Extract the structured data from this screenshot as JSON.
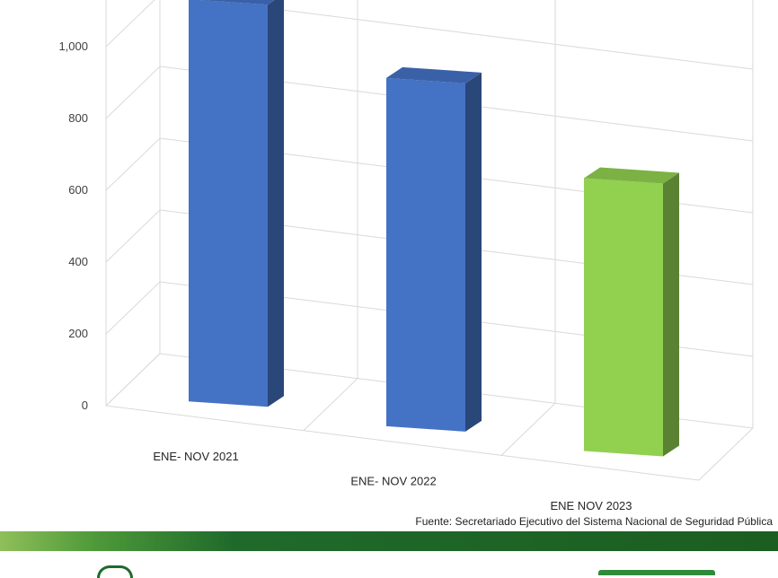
{
  "chart_data": {
    "type": "bar",
    "subtype": "3d-column",
    "categories": [
      "ENE- NOV 2021",
      "ENE- NOV 2022",
      "ENE NOV 2023"
    ],
    "values": [
      1120,
      970,
      760
    ],
    "colors": [
      "#4472c4",
      "#4472c4",
      "#92d050"
    ],
    "ylim": [
      0,
      1200
    ],
    "yticks": [
      0,
      200,
      400,
      600,
      800,
      1000
    ],
    "ytick_labels": [
      "0",
      "200",
      "400",
      "600",
      "800",
      "1,000"
    ],
    "grid": true
  },
  "source_text": "Fuente: Secretariado Ejecutivo del Sistema Nacional de Seguridad Pública"
}
